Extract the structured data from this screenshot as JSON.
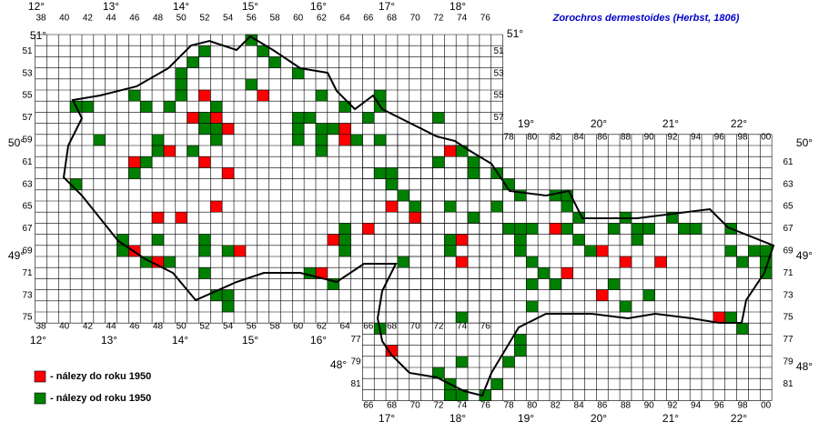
{
  "title": "Zorochros dermestoides (Herbst, 1806)",
  "legend": [
    {
      "label": "- nálezy do roku 1950",
      "color": "#ff0000"
    },
    {
      "label": "- nálezy od roku 1950",
      "color": "#008000"
    }
  ],
  "degree_labels": {
    "top_west": [
      "12°",
      "13°",
      "14°",
      "15°",
      "16°",
      "17°",
      "18°"
    ],
    "top_east": [
      "19°",
      "20°",
      "21°",
      "22°"
    ],
    "bottom_west": [
      "12°",
      "13°",
      "14°",
      "15°",
      "16°"
    ],
    "bottom_east": [
      "17°",
      "18°",
      "19°",
      "20°",
      "21°",
      "22°"
    ],
    "left": [
      "51°",
      "50°",
      "49°",
      "48°"
    ],
    "right": [
      "51°",
      "50°",
      "49°",
      "48°"
    ]
  },
  "column_labels": {
    "west_top": [
      "38",
      "40",
      "42",
      "44",
      "46",
      "48",
      "50",
      "52",
      "54",
      "56",
      "58",
      "60",
      "62",
      "64",
      "66",
      "68",
      "70",
      "72",
      "74",
      "76"
    ],
    "west_bottom": [
      "38",
      "40",
      "42",
      "44",
      "46",
      "48",
      "50",
      "52",
      "54",
      "56",
      "58",
      "60",
      "62",
      "64",
      "66",
      "68",
      "70",
      "72",
      "74",
      "76"
    ],
    "east_top": [
      "78",
      "80",
      "82",
      "84",
      "86",
      "88",
      "90",
      "92",
      "94",
      "96",
      "98",
      "00"
    ],
    "east_bottom": [
      "66",
      "68",
      "70",
      "72",
      "74",
      "76",
      "78",
      "80",
      "82",
      "84",
      "86",
      "88",
      "90",
      "92",
      "94",
      "96",
      "98",
      "00"
    ]
  },
  "row_labels": {
    "west_left": [
      "51",
      "53",
      "55",
      "57",
      "59",
      "61",
      "63",
      "65",
      "67",
      "69",
      "71",
      "73",
      "75"
    ],
    "west_right": [
      "51",
      "53",
      "55",
      "57"
    ],
    "east_right": [
      "61",
      "63",
      "65",
      "67",
      "69",
      "71",
      "73",
      "75",
      "77",
      "79",
      "81"
    ],
    "east_left": [
      "77",
      "79",
      "81"
    ]
  },
  "records": {
    "before_1950": [
      [
        52,
        55
      ],
      [
        57,
        55
      ],
      [
        51,
        57
      ],
      [
        53,
        57
      ],
      [
        54,
        58
      ],
      [
        64,
        58
      ],
      [
        64,
        59
      ],
      [
        49,
        60
      ],
      [
        46,
        61
      ],
      [
        52,
        61
      ],
      [
        54,
        62
      ],
      [
        53,
        65
      ],
      [
        48,
        66
      ],
      [
        50,
        66
      ],
      [
        66,
        67
      ],
      [
        68,
        65
      ],
      [
        70,
        66
      ],
      [
        63,
        68
      ],
      [
        46,
        69
      ],
      [
        55,
        69
      ],
      [
        48,
        70
      ],
      [
        62,
        71
      ],
      [
        73,
        60
      ],
      [
        74,
        68
      ],
      [
        74,
        70
      ],
      [
        82,
        67
      ],
      [
        86,
        69
      ],
      [
        88,
        70
      ],
      [
        91,
        70
      ],
      [
        83,
        71
      ],
      [
        86,
        73
      ],
      [
        96,
        75
      ],
      [
        68,
        78
      ]
    ],
    "since_1950": [
      [
        52,
        51
      ],
      [
        51,
        52
      ],
      [
        56,
        50
      ],
      [
        57,
        51
      ],
      [
        58,
        52
      ],
      [
        60,
        53
      ],
      [
        56,
        54
      ],
      [
        50,
        53
      ],
      [
        50,
        54
      ],
      [
        46,
        55
      ],
      [
        50,
        55
      ],
      [
        62,
        55
      ],
      [
        67,
        55
      ],
      [
        41,
        56
      ],
      [
        42,
        56
      ],
      [
        47,
        56
      ],
      [
        49,
        56
      ],
      [
        53,
        56
      ],
      [
        64,
        56
      ],
      [
        67,
        56
      ],
      [
        60,
        57
      ],
      [
        61,
        57
      ],
      [
        52,
        57
      ],
      [
        66,
        57
      ],
      [
        72,
        57
      ],
      [
        60,
        58
      ],
      [
        62,
        58
      ],
      [
        63,
        58
      ],
      [
        52,
        58
      ],
      [
        53,
        58
      ],
      [
        43,
        59
      ],
      [
        48,
        59
      ],
      [
        60,
        59
      ],
      [
        62,
        59
      ],
      [
        65,
        59
      ],
      [
        67,
        59
      ],
      [
        53,
        59
      ],
      [
        48,
        60
      ],
      [
        51,
        60
      ],
      [
        62,
        60
      ],
      [
        74,
        60
      ],
      [
        47,
        61
      ],
      [
        75,
        61
      ],
      [
        72,
        61
      ],
      [
        46,
        62
      ],
      [
        67,
        62
      ],
      [
        68,
        62
      ],
      [
        75,
        62
      ],
      [
        77,
        62
      ],
      [
        41,
        63
      ],
      [
        68,
        63
      ],
      [
        78,
        63
      ],
      [
        69,
        64
      ],
      [
        79,
        64
      ],
      [
        82,
        64
      ],
      [
        83,
        64
      ],
      [
        73,
        65
      ],
      [
        77,
        65
      ],
      [
        83,
        65
      ],
      [
        70,
        65
      ],
      [
        75,
        66
      ],
      [
        84,
        66
      ],
      [
        88,
        66
      ],
      [
        92,
        66
      ],
      [
        78,
        67
      ],
      [
        79,
        67
      ],
      [
        80,
        67
      ],
      [
        83,
        67
      ],
      [
        87,
        67
      ],
      [
        89,
        67
      ],
      [
        90,
        67
      ],
      [
        93,
        67
      ],
      [
        94,
        67
      ],
      [
        97,
        67
      ],
      [
        64,
        67
      ],
      [
        45,
        68
      ],
      [
        48,
        68
      ],
      [
        52,
        68
      ],
      [
        64,
        68
      ],
      [
        73,
        68
      ],
      [
        79,
        68
      ],
      [
        84,
        68
      ],
      [
        89,
        68
      ],
      [
        45,
        69
      ],
      [
        52,
        69
      ],
      [
        54,
        69
      ],
      [
        64,
        69
      ],
      [
        73,
        69
      ],
      [
        79,
        69
      ],
      [
        85,
        69
      ],
      [
        97,
        69
      ],
      [
        99,
        69
      ],
      [
        100,
        69
      ],
      [
        47,
        70
      ],
      [
        49,
        70
      ],
      [
        69,
        70
      ],
      [
        80,
        70
      ],
      [
        98,
        70
      ],
      [
        100,
        70
      ],
      [
        52,
        71
      ],
      [
        61,
        71
      ],
      [
        81,
        71
      ],
      [
        100,
        71
      ],
      [
        80,
        72
      ],
      [
        87,
        72
      ],
      [
        63,
        72
      ],
      [
        82,
        72
      ],
      [
        53,
        73
      ],
      [
        54,
        73
      ],
      [
        90,
        73
      ],
      [
        54,
        74
      ],
      [
        80,
        74
      ],
      [
        88,
        74
      ],
      [
        74,
        75
      ],
      [
        97,
        75
      ],
      [
        67,
        76
      ],
      [
        98,
        76
      ],
      [
        79,
        77
      ],
      [
        79,
        78
      ],
      [
        74,
        79
      ],
      [
        78,
        79
      ],
      [
        72,
        80
      ],
      [
        73,
        81
      ],
      [
        77,
        81
      ],
      [
        73,
        82
      ],
      [
        74,
        82
      ],
      [
        76,
        82
      ]
    ]
  }
}
